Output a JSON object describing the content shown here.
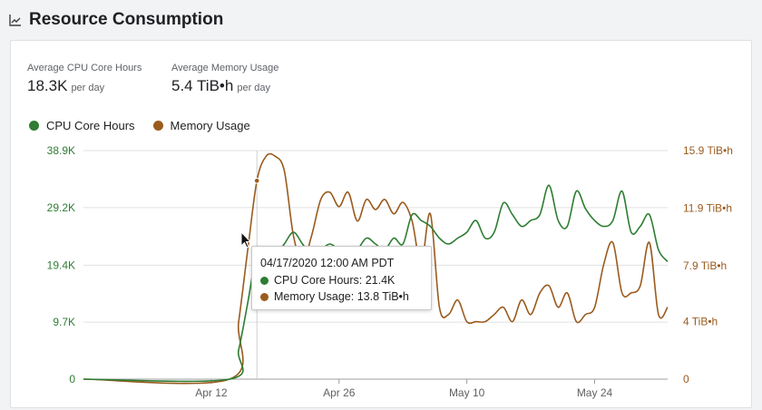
{
  "header": {
    "title": "Resource Consumption",
    "icon": "line-chart-icon"
  },
  "stats": {
    "cpu": {
      "label": "Average CPU Core Hours",
      "value": "18.3K",
      "unit": "per day"
    },
    "memory": {
      "label": "Average Memory Usage",
      "value": "5.4 TiB•h",
      "unit": "per day"
    }
  },
  "colors": {
    "cpu": "#2e7d32",
    "memory": "#9a5b1e",
    "grid": "#e0e0e0",
    "axis": "#616161"
  },
  "legend": [
    {
      "name": "CPU Core Hours",
      "color": "#2e7d32"
    },
    {
      "name": "Memory Usage",
      "color": "#9a5b1e"
    }
  ],
  "tooltip": {
    "date": "04/17/2020 12:00 AM PDT",
    "cpu": "CPU Core Hours: 21.4K",
    "memory": "Memory Usage: 13.8 TiB•h"
  },
  "chart_data": {
    "type": "line",
    "x_tick_labels": [
      "Apr 12",
      "Apr 26",
      "May 10",
      "May 24"
    ],
    "x_tick_dates": [
      "2020-04-12",
      "2020-04-26",
      "2020-05-10",
      "2020-05-24"
    ],
    "xlim": [
      "2020-03-29",
      "2020-06-01"
    ],
    "y_left": {
      "ticks": [
        0,
        9.7,
        19.4,
        29.2,
        38.9
      ],
      "tick_labels": [
        "0",
        "9.7K",
        "19.4K",
        "29.2K",
        "38.9K"
      ],
      "unit": "K",
      "lim": [
        0,
        38.9
      ]
    },
    "y_right": {
      "ticks": [
        0,
        4,
        7.9,
        11.9,
        15.9
      ],
      "tick_labels": [
        "0",
        "4 TiB•h",
        "7.9 TiB•h",
        "11.9 TiB•h",
        "15.9 TiB•h"
      ],
      "lim": [
        0,
        15.9
      ]
    },
    "grid": true,
    "legend_position": "top-left",
    "series": [
      {
        "name": "CPU Core Hours",
        "axis": "left",
        "points": [
          [
            "2020-03-29",
            0
          ],
          [
            "2020-04-14",
            0
          ],
          [
            "2020-04-15",
            5
          ],
          [
            "2020-04-16",
            13
          ],
          [
            "2020-04-17",
            21.4
          ],
          [
            "2020-04-18",
            22
          ],
          [
            "2020-04-19",
            21
          ],
          [
            "2020-04-20",
            23
          ],
          [
            "2020-04-21",
            25
          ],
          [
            "2020-04-22",
            23
          ],
          [
            "2020-04-23",
            21
          ],
          [
            "2020-04-24",
            22
          ],
          [
            "2020-04-25",
            23
          ],
          [
            "2020-04-26",
            22
          ],
          [
            "2020-04-27",
            21
          ],
          [
            "2020-04-28",
            22
          ],
          [
            "2020-04-29",
            24
          ],
          [
            "2020-04-30",
            23
          ],
          [
            "2020-05-01",
            22
          ],
          [
            "2020-05-02",
            24
          ],
          [
            "2020-05-03",
            23
          ],
          [
            "2020-05-04",
            28
          ],
          [
            "2020-05-05",
            27
          ],
          [
            "2020-05-06",
            26
          ],
          [
            "2020-05-07",
            24
          ],
          [
            "2020-05-08",
            23
          ],
          [
            "2020-05-09",
            24
          ],
          [
            "2020-05-10",
            25
          ],
          [
            "2020-05-11",
            27
          ],
          [
            "2020-05-12",
            24
          ],
          [
            "2020-05-13",
            25
          ],
          [
            "2020-05-14",
            30
          ],
          [
            "2020-05-15",
            28
          ],
          [
            "2020-05-16",
            26
          ],
          [
            "2020-05-17",
            27
          ],
          [
            "2020-05-18",
            28
          ],
          [
            "2020-05-19",
            33
          ],
          [
            "2020-05-20",
            27
          ],
          [
            "2020-05-21",
            26
          ],
          [
            "2020-05-22",
            32
          ],
          [
            "2020-05-23",
            29
          ],
          [
            "2020-05-24",
            27
          ],
          [
            "2020-05-25",
            26
          ],
          [
            "2020-05-26",
            27
          ],
          [
            "2020-05-27",
            32
          ],
          [
            "2020-05-28",
            25
          ],
          [
            "2020-05-29",
            26
          ],
          [
            "2020-05-30",
            28
          ],
          [
            "2020-05-31",
            22
          ],
          [
            "2020-06-01",
            20
          ]
        ]
      },
      {
        "name": "Memory Usage",
        "axis": "right",
        "points": [
          [
            "2020-03-29",
            0
          ],
          [
            "2020-04-14",
            0
          ],
          [
            "2020-04-15",
            4
          ],
          [
            "2020-04-16",
            9
          ],
          [
            "2020-04-17",
            13.8
          ],
          [
            "2020-04-18",
            15.5
          ],
          [
            "2020-04-19",
            15.5
          ],
          [
            "2020-04-20",
            14.5
          ],
          [
            "2020-04-21",
            10
          ],
          [
            "2020-04-22",
            8.2
          ],
          [
            "2020-04-23",
            10
          ],
          [
            "2020-04-24",
            12.5
          ],
          [
            "2020-04-25",
            13
          ],
          [
            "2020-04-26",
            12
          ],
          [
            "2020-04-27",
            13
          ],
          [
            "2020-04-28",
            11
          ],
          [
            "2020-04-29",
            12.5
          ],
          [
            "2020-04-30",
            11.8
          ],
          [
            "2020-05-01",
            12.5
          ],
          [
            "2020-05-02",
            11.5
          ],
          [
            "2020-05-03",
            12.3
          ],
          [
            "2020-05-04",
            11
          ],
          [
            "2020-05-05",
            8
          ],
          [
            "2020-05-06",
            11.5
          ],
          [
            "2020-05-07",
            5
          ],
          [
            "2020-05-08",
            4.5
          ],
          [
            "2020-05-09",
            5.5
          ],
          [
            "2020-05-10",
            4
          ],
          [
            "2020-05-11",
            4
          ],
          [
            "2020-05-12",
            4
          ],
          [
            "2020-05-13",
            4.5
          ],
          [
            "2020-05-14",
            5
          ],
          [
            "2020-05-15",
            4
          ],
          [
            "2020-05-16",
            5.5
          ],
          [
            "2020-05-17",
            4.5
          ],
          [
            "2020-05-18",
            6
          ],
          [
            "2020-05-19",
            6.5
          ],
          [
            "2020-05-20",
            5
          ],
          [
            "2020-05-21",
            6
          ],
          [
            "2020-05-22",
            4
          ],
          [
            "2020-05-23",
            4.5
          ],
          [
            "2020-05-24",
            5
          ],
          [
            "2020-05-25",
            8
          ],
          [
            "2020-05-26",
            9.5
          ],
          [
            "2020-05-27",
            6
          ],
          [
            "2020-05-28",
            6
          ],
          [
            "2020-05-29",
            6.5
          ],
          [
            "2020-05-30",
            9.5
          ],
          [
            "2020-05-31",
            4.5
          ],
          [
            "2020-06-01",
            5
          ]
        ]
      }
    ],
    "hover_date": "2020-04-17"
  }
}
